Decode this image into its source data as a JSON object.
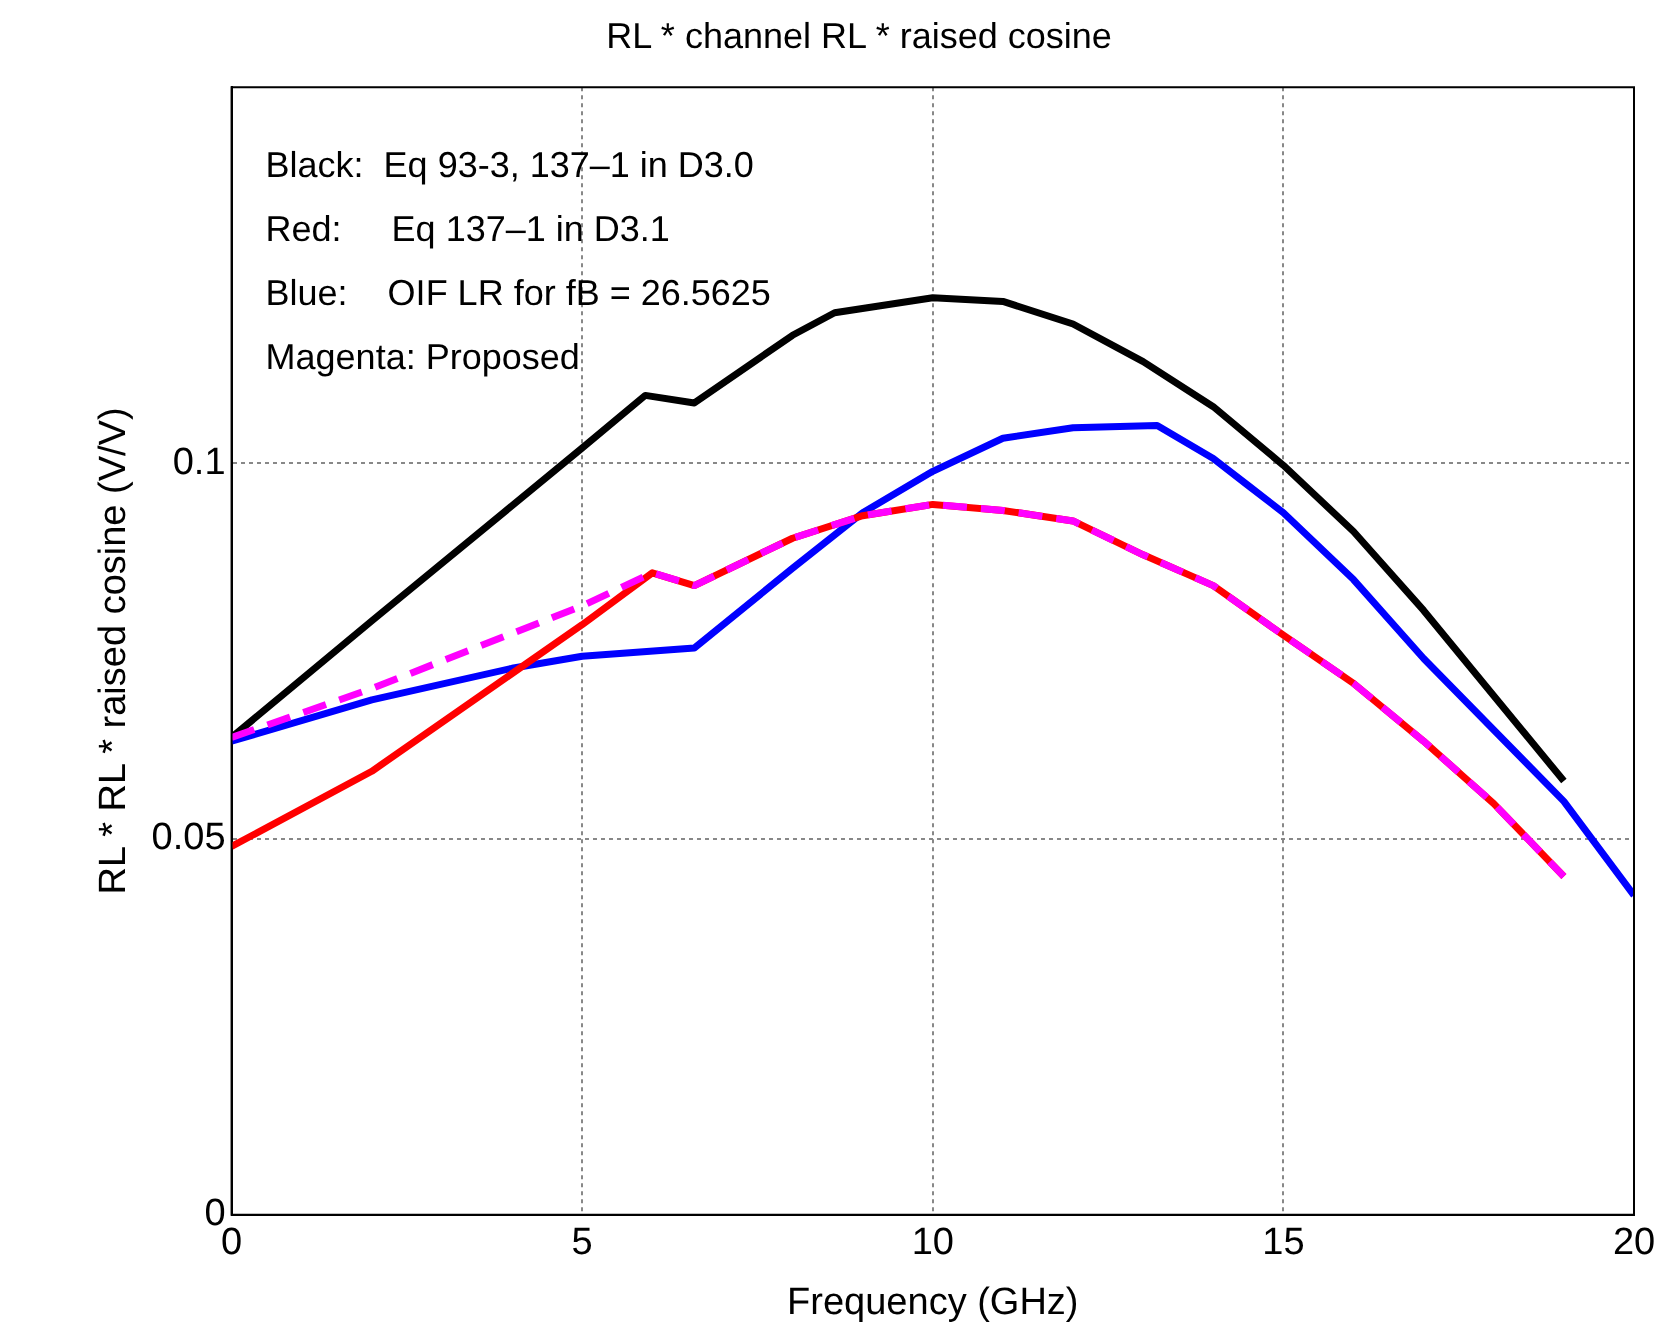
{
  "chart_data": {
    "type": "line",
    "title": "RL * channel RL * raised cosine",
    "xlabel": "Frequency (GHz)",
    "ylabel": "RL * RL * raised cosine (V/V)",
    "annotations": [
      "Black:  Eq 93-3, 137–1 in D3.0",
      "Red:     Eq 137–1 in D3.1",
      "Blue:    OIF LR for fB = 26.5625",
      "Magenta: Proposed"
    ],
    "xlim": [
      0,
      20
    ],
    "xticks": [
      0,
      5,
      10,
      15,
      20
    ],
    "ylim": [
      0,
      0.15
    ],
    "yticks": [
      0,
      0.05,
      0.1
    ],
    "grid": true,
    "legend": false,
    "marker": "none",
    "series": [
      {
        "color": "#000000",
        "x": [
          0,
          2,
          5,
          5.9,
          6.6,
          8,
          8.6,
          10,
          11,
          12,
          13,
          14,
          15,
          16,
          17,
          19
        ],
        "values": [
          0.0635,
          0.079,
          0.102,
          0.109,
          0.108,
          0.117,
          0.12,
          0.122,
          0.1215,
          0.1185,
          0.1135,
          0.1075,
          0.0997,
          0.0909,
          0.0804,
          0.0577
        ]
      },
      {
        "color": "#0000ff",
        "x": [
          0,
          2,
          4,
          5,
          6.6,
          8,
          9,
          10,
          11,
          12,
          13.2,
          14,
          14.5,
          15,
          16,
          17,
          19,
          20
        ],
        "values": [
          0.063,
          0.0685,
          0.0727,
          0.0743,
          0.0754,
          0.086,
          0.0934,
          0.0989,
          0.1033,
          0.1047,
          0.105,
          0.1006,
          0.097,
          0.0934,
          0.0845,
          0.074,
          0.055,
          0.0425
        ]
      },
      {
        "color": "#ff0000",
        "x": [
          0,
          2,
          5,
          6,
          6.6,
          8,
          9,
          10,
          11,
          12,
          13,
          14,
          15,
          16,
          17,
          18,
          19
        ],
        "values": [
          0.049,
          0.059,
          0.0785,
          0.0854,
          0.0837,
          0.09,
          0.093,
          0.0945,
          0.0937,
          0.0923,
          0.0878,
          0.0837,
          0.0771,
          0.0707,
          0.063,
          0.0547,
          0.045
        ]
      },
      {
        "color": "#ff00ff",
        "line_style": "dashed",
        "x": [
          0,
          2,
          5,
          6,
          6.6,
          8,
          9,
          10,
          11,
          12,
          13,
          14,
          15,
          16,
          17,
          18,
          19
        ],
        "values": [
          0.0635,
          0.07,
          0.081,
          0.0854,
          0.0837,
          0.09,
          0.093,
          0.0945,
          0.0937,
          0.0923,
          0.0878,
          0.0837,
          0.0771,
          0.0707,
          0.063,
          0.0547,
          0.045
        ]
      }
    ]
  }
}
